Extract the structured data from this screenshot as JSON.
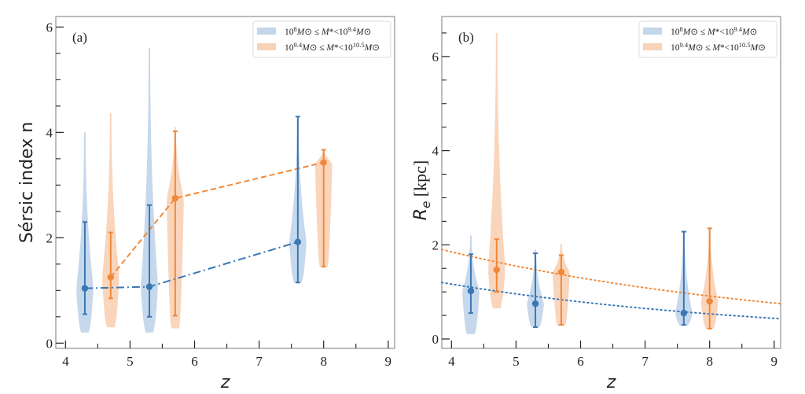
{
  "colors": {
    "blue": "#3a78b5",
    "blue_fill": "#c3d6ea",
    "orange": "#f0883a",
    "orange_fill": "#f9d3b8",
    "axis": "#999999"
  },
  "chart_data": [
    {
      "type": "violin",
      "panel_label": "(a)",
      "xlabel": "z",
      "ylabel": "Sérsic index n",
      "xlim": [
        3.85,
        9.1
      ],
      "ylim": [
        -0.1,
        6.2
      ],
      "xticks": [
        4,
        5,
        6,
        7,
        8,
        9
      ],
      "yticks": [
        0,
        2,
        4,
        6
      ],
      "grid": false,
      "legend_position": "top-right",
      "legend": [
        "10^8 M⊙ ≤ M*<10^9.4 M⊙",
        "10^9.4 M⊙ ≤ M*<10^10.5 M⊙"
      ],
      "series": [
        {
          "name": "10^8 M⊙ ≤ M*<10^9.4 M⊙",
          "color_key": "blue",
          "line_style": "dashdot",
          "points": [
            {
              "z": 4.3,
              "median": 1.04,
              "err_low": 0.55,
              "err_high": 2.3,
              "violin_min": 0.2,
              "violin_max": 4.0
            },
            {
              "z": 5.3,
              "median": 1.07,
              "err_low": 0.5,
              "err_high": 2.62,
              "violin_min": 0.2,
              "violin_max": 5.6
            },
            {
              "z": 7.6,
              "median": 1.92,
              "err_low": 1.15,
              "err_high": 4.3,
              "violin_min": 1.15,
              "violin_max": 4.3
            }
          ]
        },
        {
          "name": "10^9.4 M⊙ ≤ M*<10^10.5 M⊙",
          "color_key": "orange",
          "line_style": "dashed",
          "points": [
            {
              "z": 4.7,
              "median": 1.25,
              "err_low": 0.85,
              "err_high": 2.1,
              "violin_min": 0.3,
              "violin_max": 4.37
            },
            {
              "z": 5.7,
              "median": 2.75,
              "err_low": 0.52,
              "err_high": 4.02,
              "violin_min": 0.28,
              "violin_max": 4.1
            },
            {
              "z": 8.0,
              "median": 3.43,
              "err_low": 1.45,
              "err_high": 3.67,
              "violin_min": 1.45,
              "violin_max": 3.67
            }
          ]
        }
      ]
    },
    {
      "type": "violin",
      "panel_label": "(b)",
      "xlabel": "z",
      "ylabel": "R_e [kpc]",
      "xlim": [
        3.85,
        9.1
      ],
      "ylim": [
        -0.2,
        6.85
      ],
      "xticks": [
        4,
        5,
        6,
        7,
        8,
        9
      ],
      "yticks": [
        0,
        2,
        4,
        6
      ],
      "grid": false,
      "legend_position": "top-right",
      "legend": [
        "10^8 M⊙ ≤ M*<10^9.4 M⊙",
        "10^9.4 M⊙ ≤ M*<10^10.5 M⊙"
      ],
      "series": [
        {
          "name": "10^8 M⊙ ≤ M*<10^9.4 M⊙",
          "color_key": "blue",
          "fit_curve": {
            "style": "dotted",
            "z": [
              3.85,
              9.1
            ],
            "values": [
              1.2,
              0.43
            ]
          },
          "points": [
            {
              "z": 4.3,
              "median": 1.02,
              "err_low": 0.55,
              "err_high": 1.8,
              "violin_min": 0.1,
              "violin_max": 2.2
            },
            {
              "z": 5.3,
              "median": 0.75,
              "err_low": 0.25,
              "err_high": 1.82,
              "violin_min": 0.25,
              "violin_max": 1.9
            },
            {
              "z": 7.6,
              "median": 0.55,
              "err_low": 0.3,
              "err_high": 2.28,
              "violin_min": 0.28,
              "violin_max": 2.28
            }
          ]
        },
        {
          "name": "10^9.4 M⊙ ≤ M*<10^10.5 M⊙",
          "color_key": "orange",
          "fit_curve": {
            "style": "dotted",
            "z": [
              3.85,
              9.1
            ],
            "values": [
              1.9,
              0.75
            ]
          },
          "points": [
            {
              "z": 4.7,
              "median": 1.47,
              "err_low": 1.0,
              "err_high": 2.12,
              "violin_min": 0.65,
              "violin_max": 6.5
            },
            {
              "z": 5.7,
              "median": 1.42,
              "err_low": 0.3,
              "err_high": 1.78,
              "violin_min": 0.28,
              "violin_max": 2.02
            },
            {
              "z": 8.0,
              "median": 0.8,
              "err_low": 0.22,
              "err_high": 2.35,
              "violin_min": 0.22,
              "violin_max": 2.37
            }
          ]
        }
      ]
    }
  ]
}
